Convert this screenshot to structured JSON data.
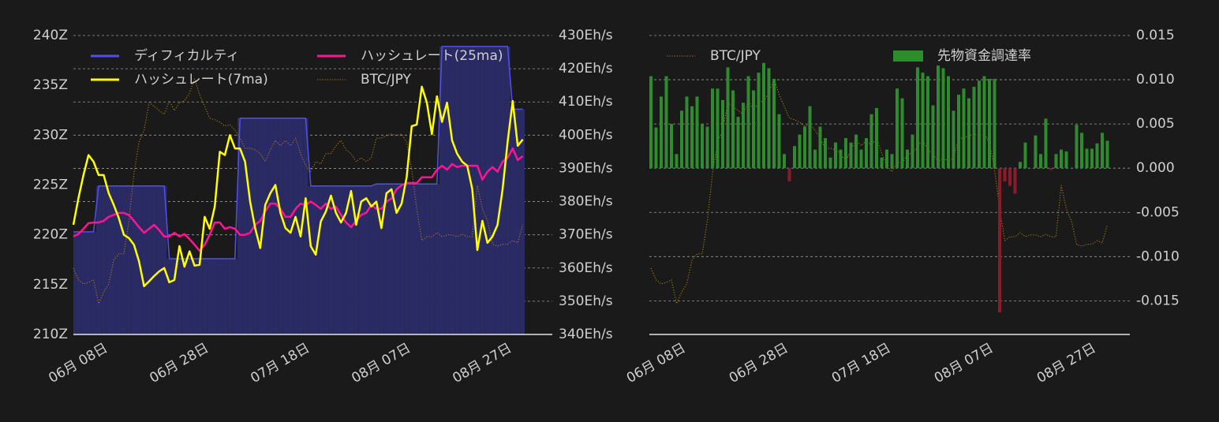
{
  "chart_data": [
    {
      "type": "line",
      "x": [
        "06-03",
        "06-04",
        "06-05",
        "06-06",
        "06-07",
        "06-08",
        "06-09",
        "06-10",
        "06-11",
        "06-12",
        "06-13",
        "06-14",
        "06-15",
        "06-16",
        "06-17",
        "06-18",
        "06-19",
        "06-20",
        "06-21",
        "06-22",
        "06-23",
        "06-24",
        "06-25",
        "06-26",
        "06-27",
        "06-28",
        "06-29",
        "06-30",
        "07-01",
        "07-02",
        "07-03",
        "07-04",
        "07-05",
        "07-06",
        "07-07",
        "07-08",
        "07-09",
        "07-10",
        "07-11",
        "07-12",
        "07-13",
        "07-14",
        "07-15",
        "07-16",
        "07-17",
        "07-18",
        "07-19",
        "07-20",
        "07-21",
        "07-22",
        "07-23",
        "07-24",
        "07-25",
        "07-26",
        "07-27",
        "07-28",
        "07-29",
        "07-30",
        "07-31",
        "08-01",
        "08-02",
        "08-03",
        "08-04",
        "08-05",
        "08-06",
        "08-07",
        "08-08",
        "08-09",
        "08-10",
        "08-11",
        "08-12",
        "08-13",
        "08-14",
        "08-15",
        "08-16",
        "08-17",
        "08-18",
        "08-19",
        "08-20",
        "08-21",
        "08-22",
        "08-23",
        "08-24",
        "08-25",
        "08-26",
        "08-27",
        "08-28",
        "08-29",
        "08-30",
        "08-31"
      ],
      "xticks": [
        {
          "value": "06-08",
          "label": "06月 08日"
        },
        {
          "value": "06-28",
          "label": "06月 28日"
        },
        {
          "value": "07-18",
          "label": "07月 18日"
        },
        {
          "value": "08-07",
          "label": "08月 07日"
        },
        {
          "value": "08-27",
          "label": "08月 27日"
        }
      ],
      "ylim": [
        210,
        240
      ],
      "yticks": [
        {
          "value": 210,
          "label": "210Z"
        },
        {
          "value": 215,
          "label": "215Z"
        },
        {
          "value": 220,
          "label": "220Z"
        },
        {
          "value": 225,
          "label": "225Z"
        },
        {
          "value": 230,
          "label": "230Z"
        },
        {
          "value": 235,
          "label": "235Z"
        },
        {
          "value": 240,
          "label": "240Z"
        }
      ],
      "y2lim": [
        340,
        430
      ],
      "y2ticks": [
        {
          "value": 340,
          "label": "340Eh/s"
        },
        {
          "value": 350,
          "label": "350Eh/s"
        },
        {
          "value": 360,
          "label": "360Eh/s"
        },
        {
          "value": 370,
          "label": "370Eh/s"
        },
        {
          "value": 380,
          "label": "380Eh/s"
        },
        {
          "value": 390,
          "label": "390Eh/s"
        },
        {
          "value": 400,
          "label": "400Eh/s"
        },
        {
          "value": 410,
          "label": "410Eh/s"
        },
        {
          "value": 420,
          "label": "420Eh/s"
        },
        {
          "value": 430,
          "label": "430Eh/s"
        }
      ],
      "grid": "y2",
      "legend": "upper left",
      "series": [
        {
          "name": "ディフィカルティ",
          "type": "area",
          "color": "#5050f0",
          "fill": "#2a2a64",
          "values": [
            220.3,
            220.3,
            220.3,
            220.3,
            220.3,
            224.9,
            224.9,
            224.9,
            224.9,
            224.9,
            224.9,
            224.9,
            224.9,
            224.9,
            224.9,
            224.9,
            224.9,
            224.9,
            224.9,
            217.6,
            217.6,
            217.6,
            217.6,
            217.6,
            217.6,
            217.6,
            217.6,
            217.6,
            217.6,
            217.6,
            217.6,
            217.6,
            217.6,
            231.7,
            231.7,
            231.7,
            231.7,
            231.7,
            231.7,
            231.7,
            231.7,
            231.7,
            231.7,
            231.7,
            231.7,
            231.7,
            231.7,
            224.9,
            224.9,
            224.9,
            224.9,
            224.9,
            224.9,
            224.9,
            224.9,
            224.9,
            224.9,
            224.9,
            224.9,
            224.9,
            225.1,
            225.1,
            225.1,
            225.1,
            225.1,
            225.1,
            225.1,
            225.1,
            225.1,
            225.1,
            225.1,
            225.1,
            225.1,
            238.9,
            238.9,
            238.9,
            238.9,
            238.9,
            238.9,
            238.9,
            238.9,
            238.9,
            238.9,
            238.9,
            238.9,
            238.9,
            238.9,
            232.6,
            232.6,
            232.6
          ]
        },
        {
          "name": "ハッシュレート(25ma)",
          "type": "line",
          "color": "#ff1493",
          "axis": "y2",
          "values": [
            369.5,
            370.2,
            371.8,
            373.5,
            373.7,
            373.7,
            374.2,
            375.4,
            376,
            376.6,
            376.6,
            375.9,
            374.2,
            372.3,
            370.6,
            371.8,
            373,
            371.4,
            369.5,
            369.5,
            370.6,
            369.5,
            370.2,
            368.7,
            367,
            365.2,
            367,
            370,
            373.7,
            373.7,
            371.8,
            372.3,
            371.8,
            370,
            370,
            370.6,
            373,
            374.2,
            377,
            379.4,
            379.4,
            377.8,
            375.4,
            375.4,
            377.8,
            379.4,
            379,
            380,
            379,
            377.8,
            379.4,
            377.8,
            378.5,
            376,
            373.7,
            372.3,
            374.2,
            376,
            376.6,
            379,
            377.8,
            377.8,
            380,
            380.9,
            383.7,
            384.9,
            385.6,
            385.6,
            385.6,
            387.3,
            387.3,
            387.3,
            389.6,
            390.8,
            389.6,
            391.3,
            390.4,
            390.8,
            390.8,
            390.8,
            390.8,
            386.6,
            389,
            390.4,
            389,
            392,
            393.2,
            396,
            392.5,
            393.7
          ]
        },
        {
          "name": "ハッシュレート(7ma)",
          "type": "line",
          "color": "#ffff00",
          "axis": "y2",
          "values": [
            373,
            381,
            388,
            394,
            392,
            388,
            388,
            382.5,
            379,
            375,
            370,
            369,
            367,
            362,
            354.5,
            356,
            357.6,
            359,
            360,
            355.7,
            356.4,
            366.6,
            360.4,
            365,
            360.7,
            361,
            375.4,
            371.8,
            378.5,
            395,
            394,
            400,
            396,
            396,
            392,
            380,
            372,
            366,
            379,
            382.5,
            385,
            376.6,
            372,
            370.6,
            375.4,
            369.5,
            381,
            366.6,
            364,
            374,
            377,
            381.8,
            376.6,
            373.7,
            376.6,
            383.2,
            373,
            380,
            381,
            378.5,
            380,
            372,
            382.5,
            383.7,
            376.6,
            379.4,
            387.3,
            402.7,
            403.2,
            414.6,
            409.8,
            400.3,
            411.7,
            404,
            409.8,
            398.4,
            394.4,
            392,
            390.8,
            383.7,
            365.4,
            374.2,
            367.6,
            369.5,
            373,
            383.7,
            398,
            410.3,
            396.8,
            398.7
          ]
        },
        {
          "name": "BTC/JPY",
          "type": "line",
          "style": "dotted",
          "color": "#b8860b",
          "axis": "y3",
          "values": [
            3739000,
            3693000,
            3677000,
            3683000,
            3693000,
            3600000,
            3646000,
            3677000,
            3770000,
            3795000,
            3795000,
            3924000,
            4109000,
            4233000,
            4279000,
            4387000,
            4372000,
            4356000,
            4341000,
            4394000,
            4356000,
            4387000,
            4394000,
            4424000,
            4480000,
            4418000,
            4372000,
            4326000,
            4320000,
            4310000,
            4295000,
            4301000,
            4279000,
            4248000,
            4208000,
            4208000,
            4202000,
            4187000,
            4156000,
            4202000,
            4239000,
            4218000,
            4239000,
            4218000,
            4248000,
            4187000,
            4140000,
            4116000,
            4156000,
            4147000,
            4187000,
            4187000,
            4218000,
            4239000,
            4202000,
            4187000,
            4156000,
            4171000,
            4156000,
            4171000,
            4248000,
            4248000,
            4258000,
            4264000,
            4258000,
            4264000,
            4233000,
            4125000,
            3971000,
            3847000,
            3862000,
            3862000,
            3878000,
            3862000,
            3869000,
            3869000,
            3862000,
            3872000,
            3862000,
            3862000,
            4063000,
            3971000,
            3924000,
            3832000,
            3825000,
            3832000,
            3832000,
            3847000,
            3838000,
            3909000
          ]
        }
      ]
    },
    {
      "type": "bar",
      "x": [
        "06-03",
        "06-04",
        "06-05",
        "06-06",
        "06-07",
        "06-08",
        "06-09",
        "06-10",
        "06-11",
        "06-12",
        "06-13",
        "06-14",
        "06-15",
        "06-16",
        "06-17",
        "06-18",
        "06-19",
        "06-20",
        "06-21",
        "06-22",
        "06-23",
        "06-24",
        "06-25",
        "06-26",
        "06-27",
        "06-28",
        "06-29",
        "06-30",
        "07-01",
        "07-02",
        "07-03",
        "07-04",
        "07-05",
        "07-06",
        "07-07",
        "07-08",
        "07-09",
        "07-10",
        "07-11",
        "07-12",
        "07-13",
        "07-14",
        "07-15",
        "07-16",
        "07-17",
        "07-18",
        "07-19",
        "07-20",
        "07-21",
        "07-22",
        "07-23",
        "07-24",
        "07-25",
        "07-26",
        "07-27",
        "07-28",
        "07-29",
        "07-30",
        "07-31",
        "08-01",
        "08-02",
        "08-03",
        "08-04",
        "08-05",
        "08-06",
        "08-07",
        "08-08",
        "08-09",
        "08-10",
        "08-11",
        "08-12",
        "08-13",
        "08-14",
        "08-15",
        "08-16",
        "08-17",
        "08-18",
        "08-19",
        "08-20",
        "08-21",
        "08-22",
        "08-23",
        "08-24",
        "08-25",
        "08-26",
        "08-27",
        "08-28",
        "08-29",
        "08-30",
        "08-31"
      ],
      "xticks": [
        {
          "value": "06-08",
          "label": "06月 08日"
        },
        {
          "value": "06-28",
          "label": "06月 28日"
        },
        {
          "value": "07-18",
          "label": "07月 18日"
        },
        {
          "value": "08-07",
          "label": "08月 07日"
        },
        {
          "value": "08-27",
          "label": "08月 27日"
        }
      ],
      "ylim": [
        -0.0188,
        0.015
      ],
      "yticks": [
        {
          "value": -0.015,
          "label": "-0.015"
        },
        {
          "value": -0.01,
          "label": "-0.010"
        },
        {
          "value": -0.005,
          "label": "-0.005"
        },
        {
          "value": 0,
          "label": "0.000"
        },
        {
          "value": 0.005,
          "label": "0.005"
        },
        {
          "value": 0.01,
          "label": "0.010"
        },
        {
          "value": 0.015,
          "label": "0.015"
        }
      ],
      "y_axis_side": "right",
      "grid": "y",
      "legend": "upper left",
      "series": [
        {
          "name": "BTC/JPY",
          "type": "line",
          "style": "dotted",
          "color": "#b8860b",
          "axis": "y3",
          "values": [
            3739000,
            3693000,
            3677000,
            3683000,
            3693000,
            3600000,
            3646000,
            3677000,
            3770000,
            3795000,
            3795000,
            3924000,
            4109000,
            4233000,
            4279000,
            4387000,
            4372000,
            4356000,
            4341000,
            4394000,
            4356000,
            4387000,
            4394000,
            4424000,
            4480000,
            4418000,
            4372000,
            4326000,
            4320000,
            4310000,
            4295000,
            4301000,
            4279000,
            4248000,
            4208000,
            4208000,
            4202000,
            4187000,
            4156000,
            4202000,
            4239000,
            4218000,
            4239000,
            4218000,
            4248000,
            4187000,
            4140000,
            4116000,
            4156000,
            4147000,
            4187000,
            4187000,
            4218000,
            4239000,
            4202000,
            4187000,
            4156000,
            4171000,
            4156000,
            4171000,
            4248000,
            4248000,
            4258000,
            4264000,
            4258000,
            4264000,
            4233000,
            4125000,
            3971000,
            3847000,
            3862000,
            3862000,
            3878000,
            3862000,
            3869000,
            3869000,
            3862000,
            3872000,
            3862000,
            3862000,
            4063000,
            3971000,
            3924000,
            3832000,
            3825000,
            3832000,
            3832000,
            3847000,
            3838000,
            3909000
          ]
        },
        {
          "name": "先物資金調達率",
          "type": "bar",
          "color": "#2e8b2e",
          "negative_color": "#8b1a2a",
          "values": [
            0.0104,
            0.0046,
            0.0081,
            0.0104,
            0.005,
            0.0016,
            0.0065,
            0.0081,
            0.007,
            0.0081,
            0.005,
            0.0047,
            0.009,
            0.009,
            0.0077,
            0.0114,
            0.0088,
            0.0058,
            0.0074,
            0.0104,
            0.0088,
            0.0108,
            0.0119,
            0.0113,
            0.0101,
            0.0061,
            0.0016,
            -0.0015,
            0.0025,
            0.0038,
            0.0047,
            0.007,
            0.0021,
            0.0047,
            0.0034,
            0.0012,
            0.0029,
            0.0021,
            0.0034,
            0.0029,
            0.0038,
            0.0021,
            0.0034,
            0.0061,
            0.0068,
            0.0012,
            0.0021,
            0.0016,
            0.009,
            0.0079,
            0.0021,
            0.0038,
            0.0114,
            0.0108,
            0.0104,
            0.0071,
            0.0116,
            0.0113,
            0.0104,
            0.0065,
            0.0083,
            0.009,
            0.0079,
            0.0092,
            0.0099,
            0.0104,
            0.0101,
            0.0101,
            -0.0163,
            -0.0015,
            -0.002,
            -0.0029,
            0.0007,
            0.0029,
            0,
            0.0037,
            0.0016,
            0.0056,
            -0.0002,
            0.0016,
            0.0021,
            0.0019,
            0,
            0.0049,
            0.004,
            0.0022,
            0.0022,
            0.0028,
            0.004,
            0.0031
          ]
        }
      ]
    }
  ]
}
